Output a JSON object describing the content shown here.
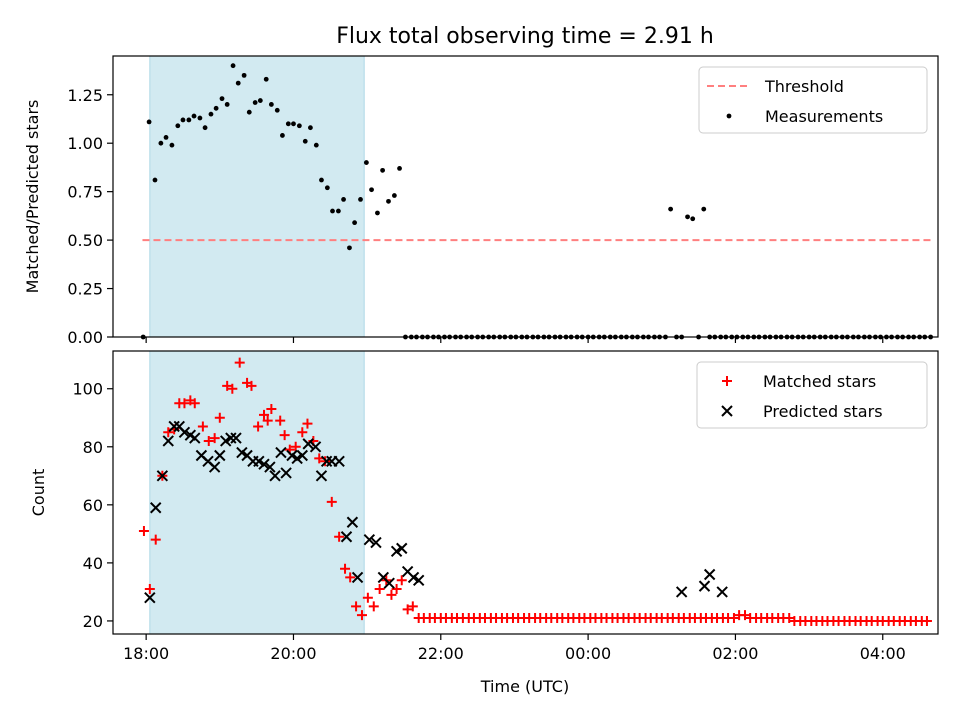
{
  "chart_data": [
    {
      "type": "scatter",
      "title": "Flux total observing time = 2.91 h",
      "xlabel": "",
      "ylabel": "Matched/Predicted stars",
      "ylim": [
        0,
        1.45
      ],
      "xlim_hours": [
        17.55,
        28.75
      ],
      "yticks": [
        0.0,
        0.25,
        0.5,
        0.75,
        1.0,
        1.25
      ],
      "ytick_labels": [
        "0.00",
        "0.25",
        "0.50",
        "0.75",
        "1.00",
        "1.25"
      ],
      "shaded_interval_hours": [
        18.05,
        20.96
      ],
      "shade_color": "#add8e6",
      "legend": {
        "placement": "upper right",
        "entries": [
          "Threshold",
          "Measurements"
        ]
      },
      "series": [
        {
          "name": "Threshold",
          "kind": "dashed-line",
          "color": "#ff7f7f",
          "x": [
            17.95,
            28.65
          ],
          "y": [
            0.5,
            0.5
          ]
        },
        {
          "name": "Measurements",
          "kind": "dots",
          "color": "#000000",
          "x": [
            17.96,
            18.04,
            18.12,
            18.2,
            18.27,
            18.35,
            18.43,
            18.5,
            18.58,
            18.65,
            18.73,
            18.8,
            18.88,
            18.95,
            19.03,
            19.1,
            19.18,
            19.25,
            19.33,
            19.4,
            19.48,
            19.55,
            19.63,
            19.7,
            19.78,
            19.85,
            19.93,
            20.0,
            20.08,
            20.16,
            20.23,
            20.31,
            20.38,
            20.46,
            20.53,
            20.61,
            20.68,
            20.76,
            20.83,
            20.91,
            20.99,
            21.06,
            21.14,
            21.21,
            21.29,
            21.37,
            21.44,
            21.52,
            21.6,
            21.67,
            21.75,
            21.82,
            21.9,
            21.97,
            22.05,
            22.12,
            22.2,
            22.27,
            22.35,
            22.42,
            22.5,
            22.57,
            22.65,
            22.72,
            22.8,
            22.87,
            22.95,
            23.02,
            23.1,
            23.17,
            23.25,
            23.32,
            23.4,
            23.47,
            23.55,
            23.62,
            23.7,
            23.77,
            23.85,
            23.92,
            24.0,
            24.07,
            24.15,
            24.22,
            24.3,
            24.37,
            24.45,
            24.52,
            24.6,
            24.67,
            24.75,
            24.82,
            24.9,
            24.97,
            25.05,
            25.12,
            25.2,
            25.27,
            25.35,
            25.42,
            25.5,
            25.57,
            25.65,
            25.72,
            25.8,
            25.87,
            25.95,
            26.02,
            26.1,
            26.17,
            26.25,
            26.32,
            26.4,
            26.47,
            26.55,
            26.62,
            26.7,
            26.77,
            26.85,
            26.92,
            27.0,
            27.07,
            27.15,
            27.22,
            27.3,
            27.37,
            27.45,
            27.52,
            27.6,
            27.67,
            27.75,
            27.82,
            27.9,
            27.97,
            28.05,
            28.12,
            28.2,
            28.27,
            28.35,
            28.42,
            28.5,
            28.57,
            28.65
          ],
          "y": [
            0.0,
            1.11,
            0.81,
            1.0,
            1.03,
            0.99,
            1.09,
            1.12,
            1.12,
            1.14,
            1.13,
            1.08,
            1.15,
            1.18,
            1.23,
            1.2,
            1.4,
            1.31,
            1.35,
            1.16,
            1.21,
            1.22,
            1.33,
            1.2,
            1.17,
            1.04,
            1.1,
            1.1,
            1.09,
            1.01,
            1.08,
            0.99,
            0.81,
            0.77,
            0.65,
            0.65,
            0.71,
            0.46,
            0.59,
            0.71,
            0.9,
            0.76,
            0.64,
            0.86,
            0.7,
            0.73,
            0.87,
            0.0,
            0.0,
            0.0,
            0.0,
            0.0,
            0.0,
            0.0,
            0.0,
            0.0,
            0.0,
            0.0,
            0.0,
            0.0,
            0.0,
            0.0,
            0.0,
            0.0,
            0.0,
            0.0,
            0.0,
            0.0,
            0.0,
            0.0,
            0.0,
            0.0,
            0.0,
            0.0,
            0.0,
            0.0,
            0.0,
            0.0,
            0.0,
            0.0,
            0.0,
            0.0,
            0.0,
            0.0,
            0.0,
            0.0,
            0.0,
            0.0,
            0.0,
            0.0,
            0.0,
            0.0,
            0.0,
            0.0,
            0.0,
            0.66,
            0.0,
            0.0,
            0.62,
            0.61,
            0.0,
            0.66,
            0.0,
            0.0,
            0.0,
            0.0,
            0.0,
            0.0,
            0.0,
            0.0,
            0.0,
            0.0,
            0.0,
            0.0,
            0.0,
            0.0,
            0.0,
            0.0,
            0.0,
            0.0,
            0.0,
            0.0,
            0.0,
            0.0,
            0.0,
            0.0,
            0.0,
            0.0,
            0.0,
            0.0,
            0.0,
            0.0,
            0.0,
            0.0,
            0.0,
            0.0,
            0.0,
            0.0,
            0.0,
            0.0,
            0.0,
            0.0,
            0.0
          ]
        }
      ]
    },
    {
      "type": "scatter",
      "title": "",
      "xlabel": "Time (UTC)",
      "ylabel": "Count",
      "ylim": [
        15.5,
        113
      ],
      "xlim_hours": [
        17.55,
        28.75
      ],
      "yticks": [
        20,
        40,
        60,
        80,
        100
      ],
      "ytick_labels": [
        "20",
        "40",
        "60",
        "80",
        "100"
      ],
      "xticks_hours": [
        18,
        20,
        22,
        24,
        26,
        28
      ],
      "xtick_labels": [
        "18:00",
        "20:00",
        "22:00",
        "00:00",
        "02:00",
        "04:00"
      ],
      "shaded_interval_hours": [
        18.05,
        20.96
      ],
      "legend": {
        "placement": "upper right",
        "entries": [
          "Matched stars",
          "Predicted stars"
        ]
      },
      "series": [
        {
          "name": "Matched stars",
          "marker": "plus",
          "color": "#ff0000",
          "x": [
            17.97,
            18.05,
            18.13,
            18.22,
            18.3,
            18.38,
            18.45,
            18.52,
            18.6,
            18.66,
            18.77,
            18.85,
            18.93,
            19.0,
            19.1,
            19.17,
            19.27,
            19.37,
            19.43,
            19.52,
            19.6,
            19.65,
            19.7,
            19.82,
            19.88,
            19.95,
            20.03,
            20.12,
            20.19,
            20.27,
            20.35,
            20.43,
            20.52,
            20.62,
            20.7,
            20.77,
            20.85,
            20.93,
            21.01,
            21.09,
            21.17,
            21.26,
            21.33,
            21.4,
            21.47,
            21.55,
            21.62,
            21.7,
            21.77,
            21.85,
            21.92,
            22.0,
            22.07,
            22.15,
            22.22,
            22.3,
            22.38,
            22.45,
            22.53,
            22.6,
            22.68,
            22.75,
            22.83,
            22.9,
            22.98,
            23.05,
            23.13,
            23.2,
            23.28,
            23.35,
            23.43,
            23.5,
            23.58,
            23.65,
            23.73,
            23.8,
            23.88,
            23.95,
            24.03,
            24.1,
            24.18,
            24.25,
            24.33,
            24.4,
            24.48,
            24.55,
            24.63,
            24.7,
            24.78,
            24.85,
            24.93,
            25.0,
            25.08,
            25.15,
            25.23,
            25.3,
            25.38,
            25.45,
            25.53,
            25.6,
            25.68,
            25.75,
            25.83,
            25.9,
            25.98,
            26.05,
            26.13,
            26.2,
            26.28,
            26.35,
            26.43,
            26.5,
            26.58,
            26.65,
            26.73,
            26.8,
            26.88,
            26.95,
            27.03,
            27.1,
            27.18,
            27.25,
            27.33,
            27.4,
            27.48,
            27.55,
            27.63,
            27.7,
            27.78,
            27.85,
            27.93,
            28.0,
            28.08,
            28.15,
            28.23,
            28.3,
            28.38,
            28.45,
            28.53,
            28.6
          ],
          "y": [
            51,
            31,
            48,
            70,
            85,
            86,
            95,
            95,
            96,
            95,
            87,
            82,
            83,
            90,
            101,
            100,
            109,
            102,
            101,
            87,
            91,
            89,
            93,
            89,
            84,
            79,
            80,
            85,
            88,
            82,
            76,
            75,
            61,
            49,
            38,
            35,
            25,
            22,
            28,
            25,
            31,
            34,
            29,
            31,
            34,
            24,
            25,
            21,
            21,
            21,
            21,
            21,
            21,
            21,
            21,
            21,
            21,
            21,
            21,
            21,
            21,
            21,
            21,
            21,
            21,
            21,
            21,
            21,
            21,
            21,
            21,
            21,
            21,
            21,
            21,
            21,
            21,
            21,
            21,
            21,
            21,
            21,
            21,
            21,
            21,
            21,
            21,
            21,
            21,
            21,
            21,
            21,
            21,
            21,
            21,
            21,
            21,
            21,
            21,
            21,
            21,
            21,
            21,
            21,
            21,
            22,
            22,
            21,
            21,
            21,
            21,
            21,
            21,
            21,
            21,
            20,
            20,
            20,
            20,
            20,
            20,
            20,
            20,
            20,
            20,
            20,
            20,
            20,
            20,
            20,
            20,
            20,
            20,
            20,
            20,
            20,
            20,
            20,
            20,
            20
          ]
        },
        {
          "name": "Predicted stars",
          "marker": "x",
          "color": "#000000",
          "x": [
            18.05,
            18.13,
            18.22,
            18.3,
            18.38,
            18.45,
            18.52,
            18.6,
            18.66,
            18.75,
            18.84,
            18.93,
            19.0,
            19.08,
            19.15,
            19.22,
            19.3,
            19.37,
            19.45,
            19.53,
            19.6,
            19.68,
            19.75,
            19.83,
            19.9,
            19.98,
            20.05,
            20.12,
            20.2,
            20.3,
            20.38,
            20.45,
            20.52,
            20.62,
            20.72,
            20.8,
            20.87,
            21.03,
            21.12,
            21.22,
            21.3,
            21.4,
            21.47,
            21.55,
            21.63,
            21.7,
            25.27,
            25.58,
            25.65,
            25.82
          ],
          "y": [
            28,
            59,
            70,
            82,
            87,
            87,
            85,
            84,
            83,
            77,
            75,
            73,
            77,
            82,
            83,
            83,
            78,
            77,
            75,
            75,
            74,
            73,
            70,
            78,
            71,
            77,
            76,
            77,
            81,
            80,
            70,
            75,
            75,
            75,
            49,
            54,
            35,
            48,
            47,
            35,
            33,
            44,
            45,
            37,
            35,
            34,
            30,
            32,
            36,
            30
          ]
        }
      ]
    }
  ]
}
